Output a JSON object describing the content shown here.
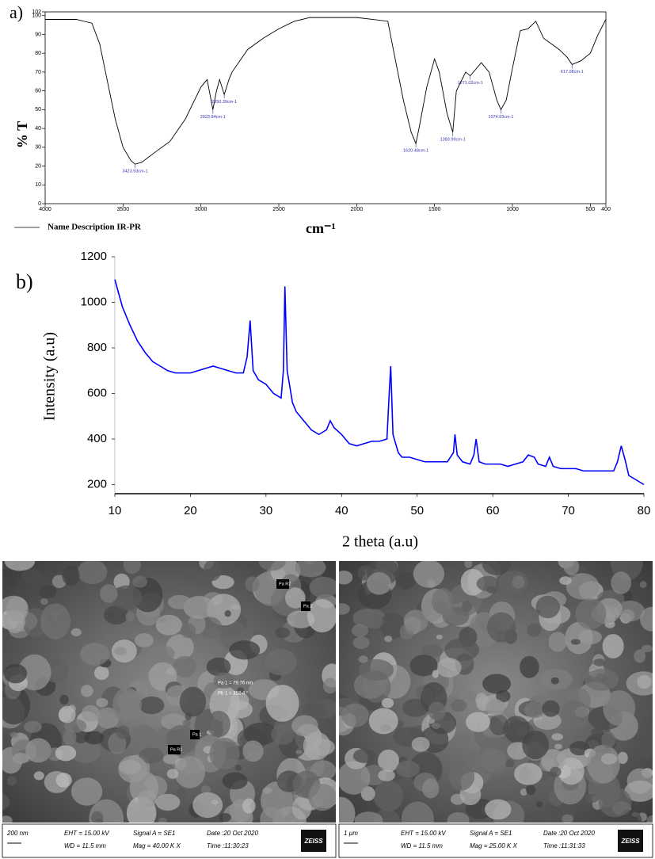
{
  "chart_data": [
    {
      "type": "line",
      "panel_label": "a)",
      "ylabel": "% T",
      "xlabel": "cm⁻¹",
      "x": [
        4000,
        3800,
        3700,
        3650,
        3600,
        3550,
        3500,
        3450,
        3423,
        3380,
        3300,
        3200,
        3100,
        3000,
        2960,
        2923,
        2900,
        2880,
        2850,
        2820,
        2800,
        2700,
        2600,
        2500,
        2400,
        2300,
        2200,
        2000,
        1900,
        1800,
        1760,
        1700,
        1650,
        1620,
        1600,
        1550,
        1500,
        1470,
        1420,
        1383,
        1360,
        1300,
        1271,
        1200,
        1150,
        1100,
        1074,
        1040,
        1000,
        950,
        900,
        850,
        800,
        750,
        700,
        650,
        617,
        560,
        500,
        450,
        400
      ],
      "series": [
        {
          "name": "Name Description IR-PR",
          "color": "#000000",
          "values": [
            98,
            98,
            96,
            85,
            65,
            45,
            30,
            23,
            21,
            22,
            27,
            33,
            45,
            62,
            66,
            50,
            60,
            66,
            58,
            66,
            70,
            82,
            88,
            93,
            97,
            99,
            99,
            99,
            98,
            97,
            80,
            55,
            38,
            32,
            40,
            62,
            77,
            70,
            48,
            38,
            60,
            70,
            68,
            75,
            70,
            55,
            50,
            55,
            72,
            92,
            93,
            97,
            88,
            85,
            82,
            78,
            74,
            76,
            80,
            90,
            98
          ]
        }
      ],
      "xlim": [
        4000,
        400
      ],
      "xticks": [
        4000,
        3500,
        3000,
        2500,
        2000,
        1500,
        1000,
        500,
        400
      ],
      "ylim": [
        0,
        102
      ],
      "yticks": [
        0,
        10,
        20,
        30,
        40,
        50,
        60,
        70,
        80,
        90,
        100,
        102
      ],
      "annotations": [
        {
          "x": 3423,
          "y": 21,
          "text": "3423.93cm-1"
        },
        {
          "x": 2923,
          "y": 50,
          "text": "2923.84cm-1"
        },
        {
          "x": 2850,
          "y": 58,
          "text": "2850.39cm-1"
        },
        {
          "x": 1620,
          "y": 32,
          "text": "1620.48cm-1"
        },
        {
          "x": 1383,
          "y": 38,
          "text": "1383.99cm-1"
        },
        {
          "x": 1271,
          "y": 68,
          "text": "1271.02cm-1"
        },
        {
          "x": 1074,
          "y": 50,
          "text": "1074.93cm-1"
        },
        {
          "x": 617,
          "y": 74,
          "text": "617.08cm-1"
        }
      ]
    },
    {
      "type": "line",
      "panel_label": "b)",
      "ylabel": "Intensity (a.u)",
      "xlabel": "2 theta (a.u)",
      "color": "#0000ff",
      "x": [
        10,
        10.5,
        11,
        12,
        13,
        14,
        15,
        16,
        17,
        18,
        19,
        20,
        21,
        22,
        23,
        24,
        25,
        26,
        27,
        27.5,
        27.9,
        28.3,
        29,
        30,
        31,
        32,
        32.3,
        32.5,
        32.8,
        33.5,
        34,
        35,
        36,
        37,
        38,
        38.5,
        39,
        40,
        41,
        42,
        43,
        44,
        45,
        46,
        46.3,
        46.5,
        46.8,
        47.5,
        48,
        49,
        50,
        51,
        52,
        53,
        54,
        54.8,
        55,
        55.3,
        56,
        57,
        57.5,
        57.8,
        58.2,
        59,
        60,
        61,
        62,
        63,
        64,
        64.7,
        65.5,
        66,
        67,
        67.5,
        68,
        69,
        70,
        71,
        72,
        73,
        74,
        75,
        76,
        76.5,
        77,
        77.5,
        78,
        79,
        80
      ],
      "values": [
        1100,
        1040,
        980,
        900,
        830,
        780,
        740,
        720,
        700,
        690,
        690,
        690,
        700,
        710,
        720,
        710,
        700,
        690,
        690,
        760,
        920,
        700,
        660,
        640,
        600,
        580,
        700,
        1070,
        700,
        560,
        520,
        480,
        440,
        420,
        440,
        480,
        450,
        420,
        380,
        370,
        380,
        390,
        390,
        400,
        600,
        720,
        420,
        340,
        320,
        320,
        310,
        300,
        300,
        300,
        300,
        340,
        420,
        330,
        300,
        290,
        330,
        400,
        300,
        290,
        290,
        290,
        280,
        290,
        300,
        330,
        320,
        290,
        280,
        320,
        280,
        270,
        270,
        270,
        260,
        260,
        260,
        260,
        260,
        300,
        370,
        310,
        240,
        220,
        200
      ],
      "xlim": [
        10,
        80
      ],
      "xticks": [
        10,
        20,
        30,
        40,
        50,
        60,
        70,
        80
      ],
      "ylim": [
        160,
        1200
      ],
      "yticks": [
        200,
        400,
        600,
        800,
        1000,
        1200
      ]
    }
  ],
  "sem_images": [
    {
      "labels": [
        "Pa R2",
        "Pa 2",
        "Pa 1 = 79.76 nm",
        "Pb 1 = 352.4 °",
        "Pa 1",
        "Pa R1"
      ],
      "info": {
        "scale": "200 nm",
        "eht": "EHT = 15.00 kV",
        "wd": "WD = 11.5 mm",
        "signal": "Signal A = SE1",
        "mag": "Mag =  40.00 K X",
        "date": "Date :20 Oct 2020",
        "time": "Time :11:30:23",
        "brand": "ZEISS"
      }
    },
    {
      "labels": [],
      "info": {
        "scale": "1 µm",
        "eht": "EHT = 15.00 kV",
        "wd": "WD = 11.5 mm",
        "signal": "Signal A = SE1",
        "mag": "Mag =  25.00 K X",
        "date": "Date :20 Oct 2020",
        "time": "Time :11:31:33",
        "brand": "ZEISS"
      }
    }
  ]
}
